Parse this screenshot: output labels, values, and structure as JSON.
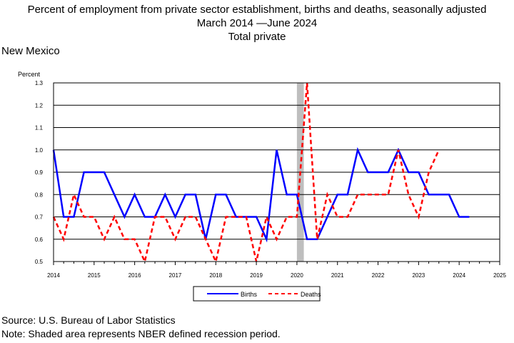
{
  "header": {
    "title_line1": "Percent of employment from private sector establishment, births and deaths, seasonally adjusted",
    "title_line2": "March 2014 —June 2024",
    "title_line3": "Total private",
    "region": "New Mexico"
  },
  "footer": {
    "source": "Source: U.S. Bureau of Labor Statistics",
    "note": "Note: Shaded area represents NBER defined recession period."
  },
  "chart_data": {
    "type": "line",
    "ylabel": "Percent",
    "xlabel": "",
    "xlim": [
      2014,
      2025
    ],
    "ylim": [
      0.5,
      1.3
    ],
    "x_ticks": [
      "2014",
      "2015",
      "2016",
      "2017",
      "2018",
      "2019",
      "2020",
      "2021",
      "2022",
      "2023",
      "2024",
      "2025"
    ],
    "y_ticks": [
      "0.5",
      "0.6",
      "0.7",
      "0.8",
      "0.9",
      "1.0",
      "1.1",
      "1.2",
      "1.3"
    ],
    "grid": "horizontal",
    "recession_shading": [
      2020.0,
      2020.17
    ],
    "legend_position": "bottom",
    "series": [
      {
        "name": "Births",
        "color": "#0000ff",
        "dash": "solid",
        "x": [
          2014.0,
          2014.25,
          2014.5,
          2014.75,
          2015.0,
          2015.25,
          2015.5,
          2015.75,
          2016.0,
          2016.25,
          2016.5,
          2016.75,
          2017.0,
          2017.25,
          2017.5,
          2017.75,
          2018.0,
          2018.25,
          2018.5,
          2018.75,
          2019.0,
          2019.25,
          2019.5,
          2019.75,
          2020.0,
          2020.25,
          2020.5,
          2020.75,
          2021.0,
          2021.25,
          2021.5,
          2021.75,
          2022.0,
          2022.25,
          2022.5,
          2022.75,
          2023.0,
          2023.25,
          2023.5,
          2023.75,
          2024.0,
          2024.25
        ],
        "values": [
          1.0,
          0.7,
          0.7,
          0.9,
          0.9,
          0.9,
          0.8,
          0.7,
          0.8,
          0.7,
          0.7,
          0.8,
          0.7,
          0.8,
          0.8,
          0.6,
          0.8,
          0.8,
          0.7,
          0.7,
          0.7,
          0.6,
          1.0,
          0.8,
          0.8,
          0.6,
          0.6,
          0.7,
          0.8,
          0.8,
          1.0,
          0.9,
          0.9,
          0.9,
          1.0,
          0.9,
          0.9,
          0.8,
          0.8,
          0.8,
          0.7,
          0.7
        ]
      },
      {
        "name": "Deaths",
        "color": "#ff0000",
        "dash": "dashed",
        "x": [
          2014.0,
          2014.25,
          2014.5,
          2014.75,
          2015.0,
          2015.25,
          2015.5,
          2015.75,
          2016.0,
          2016.25,
          2016.5,
          2016.75,
          2017.0,
          2017.25,
          2017.5,
          2017.75,
          2018.0,
          2018.25,
          2018.5,
          2018.75,
          2019.0,
          2019.25,
          2019.5,
          2019.75,
          2020.0,
          2020.25,
          2020.5,
          2020.75,
          2021.0,
          2021.25,
          2021.5,
          2021.75,
          2022.0,
          2022.25,
          2022.5,
          2022.75,
          2023.0,
          2023.25,
          2023.5
        ],
        "values": [
          0.7,
          0.6,
          0.8,
          0.7,
          0.7,
          0.6,
          0.7,
          0.6,
          0.6,
          0.5,
          0.7,
          0.7,
          0.6,
          0.7,
          0.7,
          0.6,
          0.5,
          0.7,
          0.7,
          0.7,
          0.5,
          0.7,
          0.6,
          0.7,
          0.7,
          1.3,
          0.6,
          0.8,
          0.7,
          0.7,
          0.8,
          0.8,
          0.8,
          0.8,
          1.0,
          0.8,
          0.7,
          0.9,
          1.0
        ]
      }
    ]
  }
}
